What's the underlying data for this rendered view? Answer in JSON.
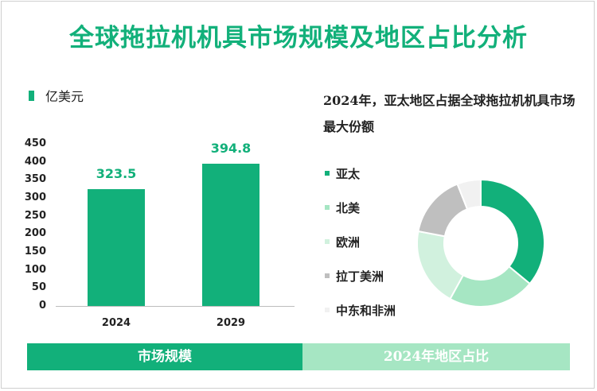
{
  "title": "全球拖拉机机具市场规模及地区占比分析",
  "chart_data": [
    {
      "type": "bar",
      "unit_label": "亿美元",
      "categories": [
        "2024",
        "2029"
      ],
      "values": [
        323.5,
        394.8
      ],
      "value_labels": [
        "323.5",
        "394.8"
      ],
      "ylim": [
        0,
        450
      ],
      "yticks": [
        "0",
        "50",
        "100",
        "150",
        "200",
        "250",
        "300",
        "350",
        "400",
        "450"
      ],
      "color": "#12b07a"
    },
    {
      "type": "pie",
      "style": "donut",
      "note": "2024年，亚太地区占据全球拖拉机机具市场最大份额",
      "labels": [
        "亚太",
        "北美",
        "欧洲",
        "拉丁美洲",
        "中东和非洲"
      ],
      "values": [
        36,
        22,
        20,
        16,
        6
      ],
      "colors": [
        "#12b07a",
        "#a6e6c3",
        "#d1f1de",
        "#bfbfbf",
        "#f1f1f1"
      ]
    }
  ],
  "footer": {
    "left": "市场规模",
    "right": "2024年地区占比"
  }
}
